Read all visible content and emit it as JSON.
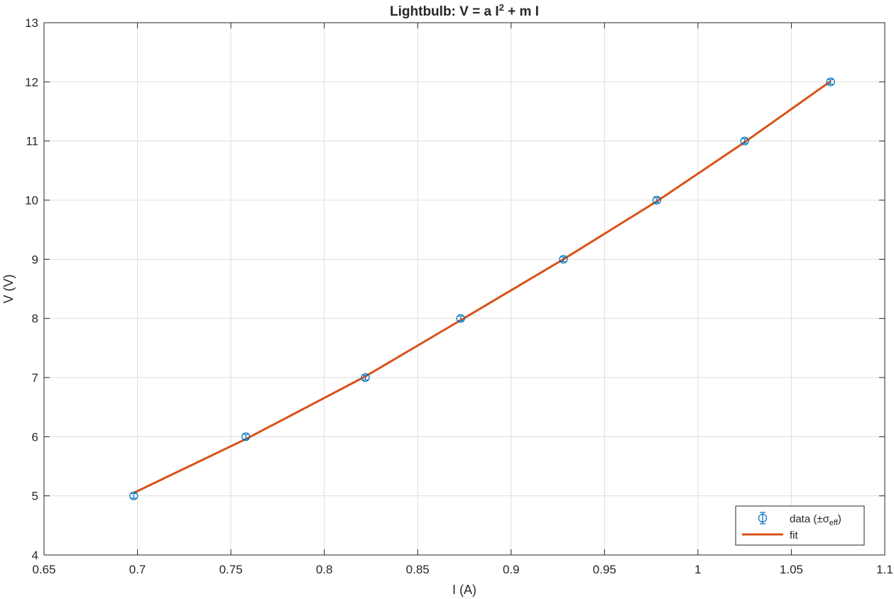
{
  "chart_data": {
    "type": "scatter",
    "title": {
      "prefix": "Lightbulb:  V  =  a  I",
      "sup": "2",
      "suffix": "  +  m  I"
    },
    "xlabel": "I (A)",
    "ylabel": "V (V)",
    "xlim": [
      0.65,
      1.1
    ],
    "ylim": [
      4,
      13
    ],
    "xticks": [
      0.65,
      0.7,
      0.75,
      0.8,
      0.85,
      0.9,
      0.95,
      1,
      1.05,
      1.1
    ],
    "xtick_labels": [
      "0.65",
      "0.7",
      "0.75",
      "0.8",
      "0.85",
      "0.9",
      "0.95",
      "1",
      "1.05",
      "1.1"
    ],
    "yticks": [
      4,
      5,
      6,
      7,
      8,
      9,
      10,
      11,
      12,
      13
    ],
    "ytick_labels": [
      "4",
      "5",
      "6",
      "7",
      "8",
      "9",
      "10",
      "11",
      "12",
      "13"
    ],
    "grid": true,
    "legend_position": "bottom-right",
    "series": [
      {
        "name": "data  (±σ",
        "name_sub": "eff",
        "name_end": ")",
        "kind": "errorbar",
        "color": "#0072BD",
        "x": [
          0.698,
          0.758,
          0.822,
          0.873,
          0.928,
          0.978,
          1.025,
          1.071
        ],
        "y": [
          5,
          6,
          7,
          8,
          9,
          10,
          11,
          12
        ],
        "yerr": [
          0.04,
          0.04,
          0.04,
          0.04,
          0.04,
          0.04,
          0.04,
          0.04
        ]
      },
      {
        "name": "fit",
        "kind": "line",
        "color": "#D95319",
        "x": [
          0.698,
          0.758,
          0.822,
          0.873,
          0.928,
          0.978,
          1.025,
          1.071
        ],
        "y": [
          5.05,
          5.96,
          7.02,
          7.97,
          9.0,
          9.98,
          10.98,
          12.01
        ]
      }
    ]
  }
}
